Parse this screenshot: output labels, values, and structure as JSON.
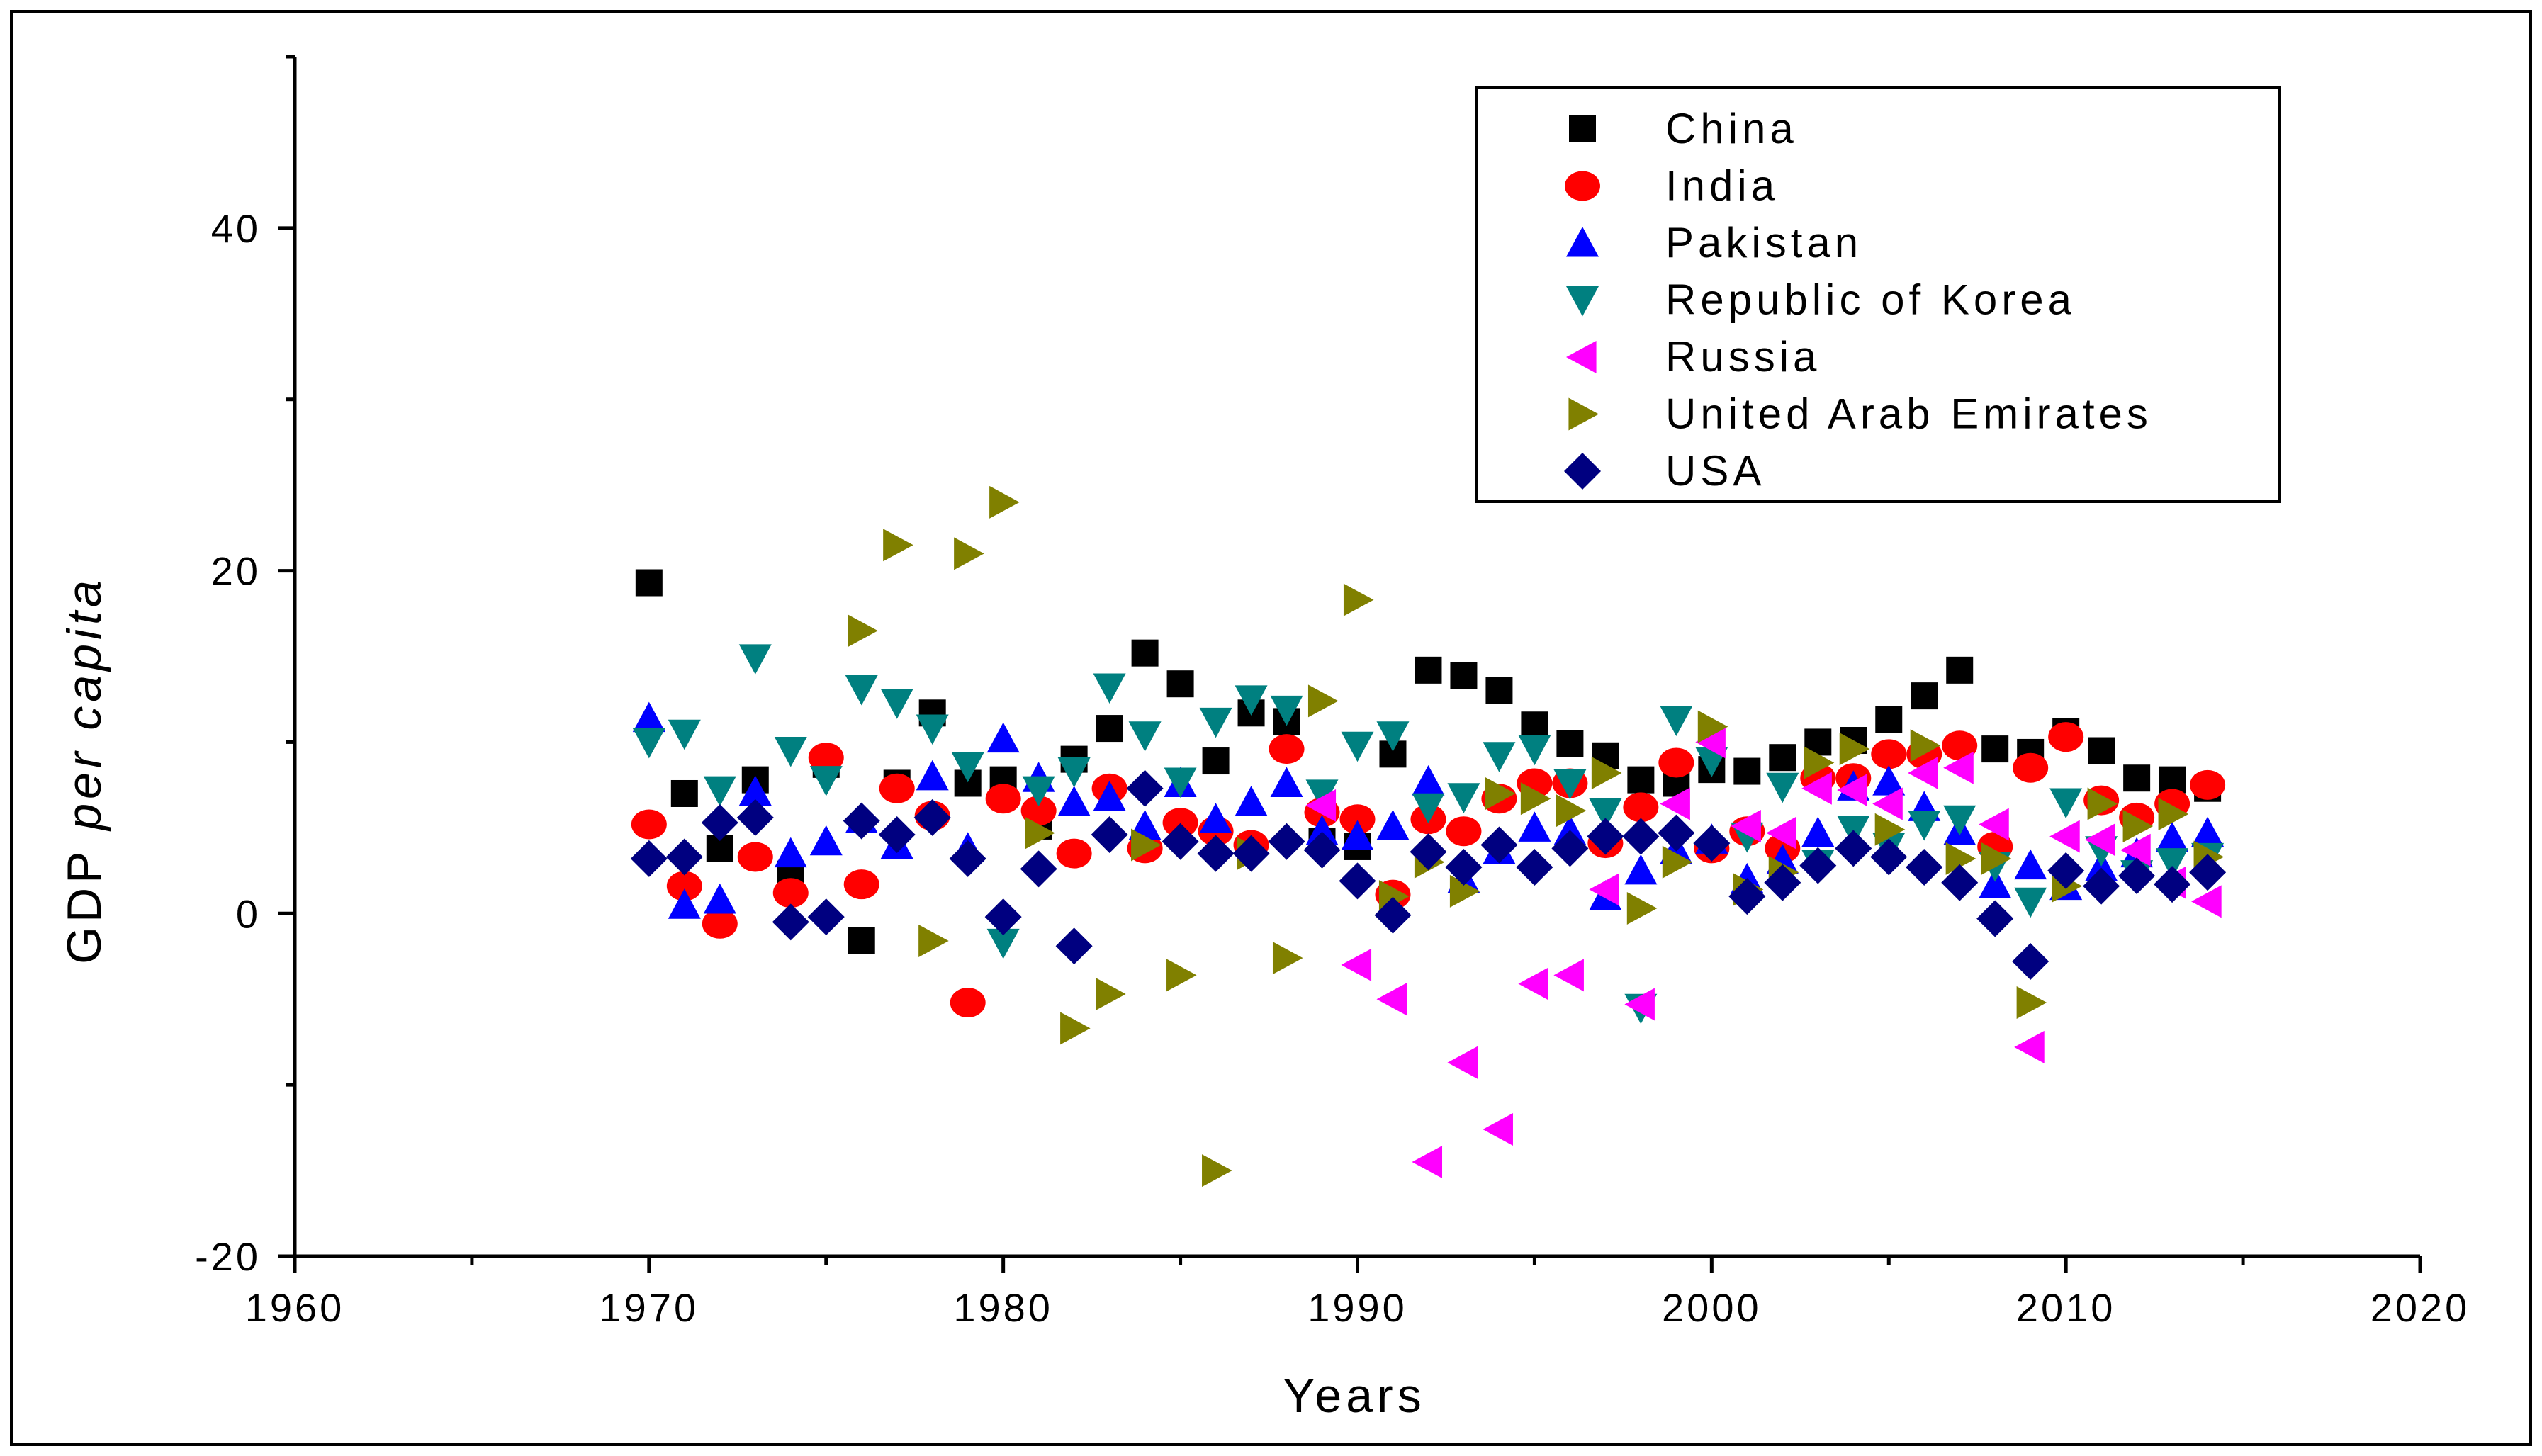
{
  "chart_data": {
    "type": "scatter",
    "title": "",
    "xlabel": "Years",
    "ylabel_plain": "GDP",
    "ylabel_italic": "per capita",
    "xlim": [
      1960,
      2020
    ],
    "ylim": [
      -20,
      50
    ],
    "xticks": [
      1960,
      1970,
      1980,
      1990,
      2000,
      2010,
      2020
    ],
    "yticks": [
      -20,
      0,
      20,
      40
    ],
    "grid": false,
    "legend_position": "top-right",
    "series": [
      {
        "name": "China",
        "marker": "square",
        "color": "#000000",
        "x": [
          1970,
          1971,
          1972,
          1973,
          1974,
          1975,
          1976,
          1977,
          1978,
          1979,
          1980,
          1981,
          1982,
          1983,
          1984,
          1985,
          1986,
          1987,
          1988,
          1989,
          1990,
          1991,
          1992,
          1993,
          1994,
          1995,
          1996,
          1997,
          1998,
          1999,
          2000,
          2001,
          2002,
          2003,
          2004,
          2005,
          2006,
          2007,
          2008,
          2009,
          2010,
          2011,
          2012,
          2013,
          2014
        ],
        "y": [
          19.3,
          7.0,
          3.8,
          7.8,
          2.3,
          8.7,
          -1.6,
          7.6,
          11.7,
          7.6,
          7.8,
          5.1,
          9.0,
          10.8,
          15.2,
          13.4,
          8.9,
          11.7,
          11.2,
          4.2,
          3.9,
          9.3,
          14.2,
          13.9,
          13.0,
          11.0,
          9.9,
          9.2,
          7.8,
          7.6,
          8.4,
          8.3,
          9.1,
          10.0,
          10.1,
          11.3,
          12.7,
          14.2,
          9.6,
          9.4,
          10.6,
          9.5,
          7.9,
          7.8,
          7.3
        ]
      },
      {
        "name": "India",
        "marker": "circle",
        "color": "#ff0000",
        "x": [
          1970,
          1971,
          1972,
          1973,
          1974,
          1975,
          1976,
          1977,
          1978,
          1979,
          1980,
          1981,
          1982,
          1983,
          1984,
          1985,
          1986,
          1987,
          1988,
          1989,
          1990,
          1991,
          1992,
          1993,
          1994,
          1995,
          1996,
          1997,
          1998,
          1999,
          2000,
          2001,
          2002,
          2003,
          2004,
          2005,
          2006,
          2007,
          2008,
          2009,
          2010,
          2011,
          2012,
          2013,
          2014
        ],
        "y": [
          5.2,
          1.6,
          -0.6,
          3.3,
          1.2,
          9.1,
          1.7,
          7.3,
          5.7,
          -5.2,
          6.7,
          6.0,
          3.5,
          7.3,
          3.8,
          5.3,
          4.8,
          4.0,
          9.6,
          5.9,
          5.5,
          1.1,
          5.5,
          4.8,
          6.7,
          7.6,
          7.6,
          4.1,
          6.2,
          8.8,
          3.8,
          4.8,
          3.8,
          7.9,
          7.9,
          9.3,
          9.3,
          9.8,
          3.9,
          8.5,
          10.3,
          6.6,
          5.6,
          6.4,
          7.5
        ]
      },
      {
        "name": "Pakistan",
        "marker": "triangle-up",
        "color": "#0000ff",
        "x": [
          1970,
          1971,
          1972,
          1973,
          1974,
          1975,
          1976,
          1977,
          1978,
          1979,
          1980,
          1981,
          1982,
          1983,
          1984,
          1985,
          1986,
          1987,
          1988,
          1989,
          1990,
          1991,
          1992,
          1993,
          1994,
          1995,
          1996,
          1997,
          1998,
          1999,
          2000,
          2001,
          2002,
          2003,
          2004,
          2005,
          2006,
          2007,
          2008,
          2009,
          2010,
          2011,
          2012,
          2013,
          2014
        ],
        "y": [
          11.4,
          0.5,
          0.8,
          7.1,
          3.5,
          4.2,
          5.5,
          4.0,
          8.0,
          3.8,
          10.2,
          7.9,
          6.5,
          6.8,
          5.1,
          7.6,
          5.5,
          6.5,
          7.6,
          4.8,
          4.5,
          5.1,
          7.7,
          2.0,
          3.7,
          5.0,
          4.8,
          1.0,
          2.5,
          3.7,
          4.3,
          2.0,
          3.1,
          4.7,
          7.4,
          7.7,
          6.2,
          4.8,
          1.7,
          2.8,
          1.6,
          2.7,
          3.5,
          4.4,
          4.7
        ]
      },
      {
        "name": "Republic of Korea",
        "marker": "triangle-down",
        "color": "#008080",
        "x": [
          1970,
          1971,
          1972,
          1973,
          1974,
          1975,
          1976,
          1977,
          1978,
          1979,
          1980,
          1981,
          1982,
          1983,
          1984,
          1985,
          1986,
          1987,
          1988,
          1989,
          1990,
          1991,
          1992,
          1993,
          1994,
          1995,
          1996,
          1997,
          1998,
          1999,
          2000,
          2001,
          2002,
          2003,
          2004,
          2005,
          2006,
          2007,
          2008,
          2009,
          2010,
          2011,
          2012,
          2013,
          2014
        ],
        "y": [
          10.0,
          10.5,
          7.2,
          14.9,
          9.5,
          7.8,
          13.1,
          12.3,
          10.8,
          8.6,
          -1.7,
          7.2,
          8.3,
          13.2,
          10.4,
          7.7,
          11.2,
          12.5,
          11.9,
          7.0,
          9.8,
          10.4,
          6.2,
          6.8,
          9.2,
          9.6,
          7.6,
          5.9,
          -5.5,
          11.3,
          8.9,
          4.5,
          7.4,
          2.9,
          4.9,
          3.9,
          5.2,
          5.5,
          2.8,
          0.7,
          6.5,
          3.7,
          2.3,
          3.0,
          3.3
        ]
      },
      {
        "name": "Russia",
        "marker": "triangle-left",
        "color": "#ff00ff",
        "x": [
          1989,
          1990,
          1991,
          1992,
          1993,
          1994,
          1995,
          1996,
          1997,
          1998,
          1999,
          2000,
          2001,
          2002,
          2003,
          2004,
          2005,
          2006,
          2007,
          2008,
          2009,
          2010,
          2011,
          2012,
          2013,
          2014
        ],
        "y": [
          6.3,
          -3.0,
          -5.0,
          -14.5,
          -8.7,
          -12.6,
          -4.1,
          -3.6,
          1.4,
          -5.3,
          6.4,
          10.0,
          5.1,
          4.7,
          7.3,
          7.2,
          6.4,
          8.2,
          8.5,
          5.2,
          -7.8,
          4.5,
          4.3,
          3.7,
          1.8,
          0.7
        ]
      },
      {
        "name": "United Arab Emirates",
        "marker": "triangle-right",
        "color": "#808000",
        "x": [
          1976,
          1977,
          1978,
          1979,
          1980,
          1981,
          1982,
          1983,
          1984,
          1985,
          1986,
          1987,
          1988,
          1989,
          1990,
          1991,
          1992,
          1993,
          1994,
          1995,
          1996,
          1997,
          1998,
          1999,
          2000,
          2001,
          2002,
          2003,
          2004,
          2005,
          2006,
          2007,
          2008,
          2009,
          2010,
          2011,
          2012,
          2013,
          2014
        ],
        "y": [
          16.5,
          21.5,
          -1.6,
          21.0,
          24.0,
          4.7,
          -6.7,
          -4.7,
          4.0,
          -3.6,
          -15.0,
          3.5,
          -2.6,
          12.4,
          18.3,
          1.0,
          3.0,
          1.3,
          7.0,
          6.7,
          6.0,
          8.2,
          0.3,
          3.0,
          10.9,
          1.4,
          2.4,
          8.8,
          9.6,
          4.9,
          9.8,
          3.2,
          3.2,
          -5.2,
          1.6,
          6.4,
          5.1,
          5.8,
          3.3
        ]
      },
      {
        "name": "USA",
        "marker": "diamond",
        "color": "#000080",
        "x": [
          1970,
          1971,
          1972,
          1973,
          1974,
          1975,
          1976,
          1977,
          1978,
          1979,
          1980,
          1981,
          1982,
          1983,
          1984,
          1985,
          1986,
          1987,
          1988,
          1989,
          1990,
          1991,
          1992,
          1993,
          1994,
          1995,
          1996,
          1997,
          1998,
          1999,
          2000,
          2001,
          2002,
          2003,
          2004,
          2005,
          2006,
          2007,
          2008,
          2009,
          2010,
          2011,
          2012,
          2013,
          2014
        ],
        "y": [
          3.2,
          3.3,
          5.3,
          5.6,
          -0.5,
          -0.2,
          5.4,
          4.6,
          5.6,
          3.2,
          -0.2,
          2.6,
          -1.9,
          4.6,
          7.3,
          4.2,
          3.5,
          3.5,
          4.2,
          3.7,
          1.9,
          -0.1,
          3.6,
          2.7,
          4.0,
          2.7,
          3.8,
          4.5,
          4.5,
          4.7,
          4.1,
          1.0,
          1.8,
          2.8,
          3.8,
          3.3,
          2.7,
          1.8,
          -0.3,
          -2.8,
          2.5,
          1.6,
          2.2,
          1.7,
          2.4
        ]
      }
    ]
  }
}
